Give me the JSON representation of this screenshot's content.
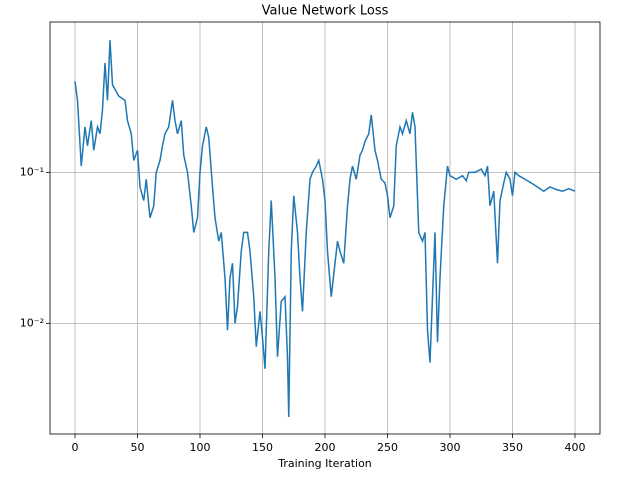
{
  "chart_data": {
    "type": "line",
    "title": "Value Network Loss",
    "x_label": "Training Iteration",
    "log_y": true,
    "grid": true,
    "x": [
      0,
      2,
      5,
      8,
      10,
      13,
      15,
      18,
      20,
      22,
      24,
      26,
      28,
      30,
      35,
      40,
      42,
      45,
      47,
      50,
      52,
      55,
      57,
      60,
      63,
      65,
      68,
      70,
      72,
      75,
      78,
      80,
      82,
      85,
      87,
      90,
      93,
      95,
      98,
      100,
      102,
      105,
      107,
      110,
      112,
      115,
      117,
      120,
      122,
      124,
      126,
      128,
      130,
      133,
      135,
      138,
      140,
      143,
      145,
      148,
      150,
      152,
      155,
      157,
      160,
      162,
      165,
      168,
      170,
      171,
      173,
      175,
      178,
      180,
      182,
      185,
      188,
      190,
      193,
      195,
      198,
      200,
      202,
      205,
      208,
      210,
      212,
      215,
      218,
      220,
      222,
      225,
      228,
      230,
      232,
      235,
      237,
      240,
      242,
      245,
      248,
      250,
      252,
      255,
      257,
      260,
      262,
      265,
      268,
      270,
      272,
      275,
      278,
      280,
      282,
      284,
      286,
      288,
      290,
      292,
      295,
      298,
      300,
      305,
      310,
      313,
      315,
      320,
      325,
      328,
      330,
      332,
      335,
      338,
      340,
      343,
      345,
      348,
      350,
      352,
      355,
      360,
      365,
      370,
      375,
      380,
      385,
      390,
      395,
      400
    ],
    "series": [
      {
        "name": "Value Network Loss",
        "color": "#1f77b4",
        "values": [
          0.4,
          0.3,
          0.11,
          0.2,
          0.15,
          0.22,
          0.14,
          0.2,
          0.18,
          0.26,
          0.53,
          0.3,
          0.75,
          0.38,
          0.32,
          0.3,
          0.22,
          0.18,
          0.12,
          0.14,
          0.08,
          0.065,
          0.09,
          0.05,
          0.06,
          0.1,
          0.12,
          0.15,
          0.18,
          0.2,
          0.3,
          0.22,
          0.18,
          0.22,
          0.13,
          0.1,
          0.06,
          0.04,
          0.05,
          0.1,
          0.15,
          0.2,
          0.17,
          0.08,
          0.05,
          0.035,
          0.04,
          0.02,
          0.009,
          0.02,
          0.025,
          0.01,
          0.013,
          0.03,
          0.04,
          0.04,
          0.03,
          0.015,
          0.007,
          0.012,
          0.008,
          0.005,
          0.03,
          0.065,
          0.02,
          0.006,
          0.014,
          0.015,
          0.006,
          0.0024,
          0.03,
          0.07,
          0.04,
          0.02,
          0.012,
          0.04,
          0.09,
          0.1,
          0.11,
          0.12,
          0.09,
          0.065,
          0.03,
          0.015,
          0.025,
          0.035,
          0.03,
          0.025,
          0.06,
          0.09,
          0.11,
          0.09,
          0.13,
          0.14,
          0.16,
          0.18,
          0.24,
          0.14,
          0.12,
          0.09,
          0.085,
          0.07,
          0.05,
          0.06,
          0.15,
          0.2,
          0.18,
          0.22,
          0.18,
          0.25,
          0.2,
          0.04,
          0.035,
          0.04,
          0.009,
          0.0055,
          0.015,
          0.04,
          0.0075,
          0.02,
          0.06,
          0.11,
          0.095,
          0.09,
          0.095,
          0.088,
          0.1,
          0.1,
          0.105,
          0.095,
          0.11,
          0.06,
          0.075,
          0.025,
          0.065,
          0.085,
          0.1,
          0.09,
          0.07,
          0.1,
          0.095,
          0.09,
          0.085,
          0.08,
          0.075,
          0.08,
          0.077,
          0.075,
          0.078,
          0.075
        ]
      }
    ],
    "xlim": [
      -20,
      420
    ],
    "xticks": [
      0,
      50,
      100,
      150,
      200,
      250,
      300,
      350,
      400
    ],
    "ylim": [
      0.00185,
      0.99
    ],
    "yticks": [
      {
        "value": 0.01,
        "label": "10⁻²"
      },
      {
        "value": 0.1,
        "label": "10⁻¹"
      }
    ]
  }
}
